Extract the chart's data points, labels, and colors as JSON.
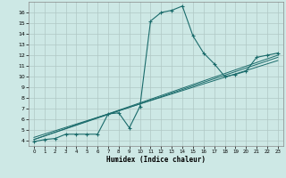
{
  "xlabel": "Humidex (Indice chaleur)",
  "bg_color": "#cde8e5",
  "grid_color": "#b0c8c5",
  "line_color": "#1a6b6b",
  "xlim": [
    -0.5,
    23.5
  ],
  "ylim": [
    3.5,
    17.0
  ],
  "yticks": [
    4,
    5,
    6,
    7,
    8,
    9,
    10,
    11,
    12,
    13,
    14,
    15,
    16
  ],
  "xticks": [
    0,
    1,
    2,
    3,
    4,
    5,
    6,
    7,
    8,
    9,
    10,
    11,
    12,
    13,
    14,
    15,
    16,
    17,
    18,
    19,
    20,
    21,
    22,
    23
  ],
  "series1_x": [
    0,
    1,
    2,
    3,
    4,
    5,
    6,
    7,
    8,
    9,
    10,
    11,
    12,
    13,
    14,
    15,
    16,
    17,
    18,
    19,
    20,
    21,
    22,
    23
  ],
  "series1_y": [
    3.9,
    4.1,
    4.2,
    4.6,
    4.6,
    4.6,
    4.6,
    6.5,
    6.6,
    5.2,
    7.2,
    15.2,
    16.0,
    16.2,
    16.6,
    13.8,
    12.2,
    11.2,
    10.0,
    10.2,
    10.5,
    11.8,
    12.0,
    12.2
  ],
  "series2_x": [
    0,
    23
  ],
  "series2_y": [
    4.1,
    12.0
  ],
  "series3_x": [
    0,
    23
  ],
  "series3_y": [
    4.3,
    11.5
  ],
  "series4_x": [
    0,
    23
  ],
  "series4_y": [
    4.1,
    11.8
  ]
}
